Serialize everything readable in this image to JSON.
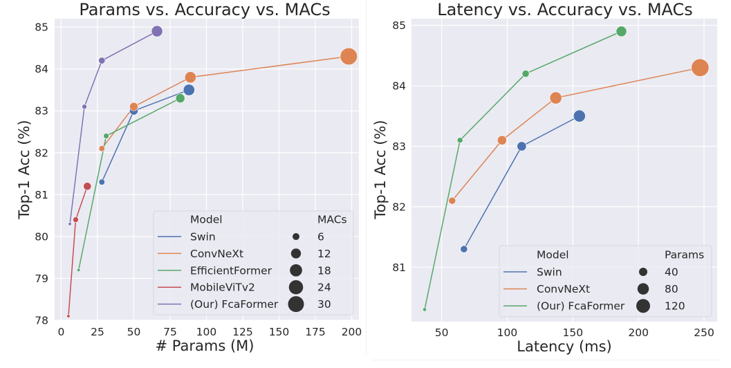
{
  "colors": {
    "background": "#eaeaf2",
    "grid": "#ffffff",
    "text": "#262626",
    "legend_marker": "#333333",
    "Swin": "#4c72b0",
    "ConvNeXt": "#dd8452",
    "EfficientFormer": "#55a868",
    "MobileViTv2": "#c44e52",
    "FcaFormer": "#8172b3"
  },
  "chart_data": [
    {
      "type": "scatter",
      "title": "Params vs. Accuracy vs. MACs",
      "xlabel": "# Params (M)",
      "ylabel": "Top-1 Acc (%)",
      "xlim": [
        -4.5,
        205
      ],
      "ylim": [
        78,
        85.2
      ],
      "xticks": [
        "0",
        "25",
        "50",
        "75",
        "100",
        "125",
        "150",
        "175",
        "200"
      ],
      "xtick_values": [
        0,
        25,
        50,
        75,
        100,
        125,
        150,
        175,
        200
      ],
      "yticks": [
        "78",
        "79",
        "80",
        "81",
        "82",
        "83",
        "84",
        "85"
      ],
      "ytick_values": [
        78,
        79,
        80,
        81,
        82,
        83,
        84,
        85
      ],
      "grid": true,
      "legend": {
        "placement": "lower-right",
        "hue_title": "Model",
        "size_title": "MACs",
        "hue_entries": [
          "Swin",
          "ConvNeXt",
          "EfficientFormer",
          "MobileViTv2",
          "(Our) FcaFormer"
        ],
        "hue_color_keys": [
          "Swin",
          "ConvNeXt",
          "EfficientFormer",
          "MobileViTv2",
          "FcaFormer"
        ],
        "size_entries": [
          "6",
          "12",
          "18",
          "24",
          "30"
        ],
        "size_values": [
          6,
          12,
          18,
          24,
          30
        ]
      },
      "size_range": [
        1,
        35
      ],
      "series": [
        {
          "name": "Swin",
          "color_key": "Swin",
          "x": [
            28,
            50,
            88
          ],
          "y": [
            81.3,
            83.0,
            83.5
          ],
          "size": [
            4.5,
            8.7,
            15.4
          ]
        },
        {
          "name": "ConvNeXt",
          "color_key": "ConvNeXt",
          "x": [
            28,
            50,
            89,
            198
          ],
          "y": [
            82.1,
            83.1,
            83.8,
            84.3
          ],
          "size": [
            4.5,
            8.7,
            15.4,
            34.4
          ]
        },
        {
          "name": "EfficientFormer",
          "color_key": "EfficientFormer",
          "x": [
            12,
            31,
            82
          ],
          "y": [
            79.2,
            82.4,
            83.3
          ],
          "size": [
            1.3,
            3.9,
            10.2
          ]
        },
        {
          "name": "MobileViTv2",
          "color_key": "MobileViTv2",
          "x": [
            5,
            10,
            18
          ],
          "y": [
            78.1,
            80.4,
            81.2
          ],
          "size": [
            1.0,
            4.0,
            7.5
          ]
        },
        {
          "name": "(Our) FcaFormer",
          "color_key": "FcaFormer",
          "x": [
            6,
            16,
            28,
            66
          ],
          "y": [
            80.3,
            83.1,
            84.2,
            84.9
          ],
          "size": [
            1.0,
            3.0,
            5.5,
            15.0
          ]
        }
      ]
    },
    {
      "type": "scatter",
      "title": "Latency vs. Accuracy vs. MACs",
      "xlabel": "Latency (ms)",
      "ylabel": "Top-1 Acc (%)",
      "xlim": [
        27,
        260
      ],
      "ylim": [
        80.1,
        85.11
      ],
      "xticks": [
        "50",
        "100",
        "150",
        "200",
        "250"
      ],
      "xtick_values": [
        50,
        100,
        150,
        200,
        250
      ],
      "yticks": [
        "81",
        "82",
        "83",
        "84",
        "85"
      ],
      "ytick_values": [
        81,
        82,
        83,
        84,
        85
      ],
      "grid": true,
      "legend": {
        "placement": "lower-right",
        "hue_title": "Model",
        "size_title": "Params",
        "hue_entries": [
          "Swin",
          "ConvNeXt",
          "(Our) FcaFormer"
        ],
        "hue_color_keys": [
          "Swin",
          "ConvNeXt",
          "EfficientFormer"
        ],
        "size_entries": [
          "40",
          "80",
          "120"
        ],
        "size_values": [
          40,
          80,
          120
        ]
      },
      "size_range": [
        5,
        200
      ],
      "series": [
        {
          "name": "Swin",
          "color_key": "Swin",
          "x": [
            67,
            111,
            155
          ],
          "y": [
            81.3,
            83.0,
            83.5
          ],
          "size": [
            28,
            50,
            88
          ]
        },
        {
          "name": "ConvNeXt",
          "color_key": "ConvNeXt",
          "x": [
            58,
            96,
            137,
            247
          ],
          "y": [
            82.1,
            83.1,
            83.8,
            84.3
          ],
          "size": [
            28,
            50,
            89,
            198
          ]
        },
        {
          "name": "(Our) FcaFormer",
          "color_key": "EfficientFormer",
          "x": [
            37,
            64,
            114,
            187
          ],
          "y": [
            80.3,
            83.1,
            84.2,
            84.9
          ],
          "size": [
            6,
            16,
            28,
            66
          ]
        }
      ]
    }
  ]
}
